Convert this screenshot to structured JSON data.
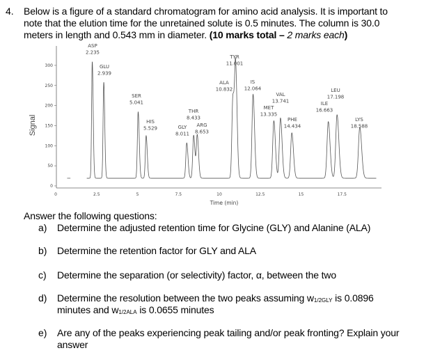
{
  "question": {
    "number": "4.",
    "lines": [
      "Below is a figure of a standard chromatogram for amino acid analysis. It is important to",
      "note that the elution time for the unretained solute is 0.5 minutes. The column is 30.0",
      "meters in length and 0.543 mm in diameter."
    ],
    "marks_bold": "(10 marks total – ",
    "marks_italic": "2 marks each",
    "marks_close": ")"
  },
  "chart_data": {
    "type": "line",
    "title": "",
    "xlabel": "Time (min)",
    "ylabel": "Signal",
    "xlim": [
      0,
      20
    ],
    "ylim": [
      0,
      320
    ],
    "xticks": [
      "0",
      "2.5",
      "5",
      "7.5",
      "10",
      "12.5",
      "15",
      "17.5"
    ],
    "xtick_values": [
      0,
      2.5,
      5,
      7.5,
      10,
      12.5,
      15,
      17.5
    ],
    "yticks": [
      "0",
      "50",
      "100",
      "150",
      "200",
      "250",
      "300"
    ],
    "ytick_values": [
      0,
      50,
      100,
      150,
      200,
      250,
      300
    ],
    "baseline": 19,
    "grid": false,
    "peaks": [
      {
        "name": "ASP",
        "rt": "2.235",
        "time": 2.235,
        "height": 309
      },
      {
        "name": "GLU",
        "rt": "2.939",
        "time": 2.939,
        "height": 258
      },
      {
        "name": "SER",
        "rt": "5.041",
        "time": 5.041,
        "height": 184
      },
      {
        "name": "HIS",
        "rt": "5.529",
        "time": 5.529,
        "height": 125
      },
      {
        "name": "GLY",
        "rt": "8.011",
        "time": 8.011,
        "height": 107
      },
      {
        "name": "THR",
        "rt": "8.433",
        "time": 8.433,
        "height": 126
      },
      {
        "name": "ARG",
        "rt": "8.653",
        "time": 8.653,
        "height": 126
      },
      {
        "name": "ALA",
        "rt": "10.832",
        "time": 10.832,
        "height": 221
      },
      {
        "name": "TYR",
        "rt": "11.001",
        "time": 11.001,
        "height": 285
      },
      {
        "name": "IS",
        "rt": "12.064",
        "time": 12.064,
        "height": 228
      },
      {
        "name": "MET",
        "rt": "13.335",
        "time": 13.335,
        "height": 162
      },
      {
        "name": "VAL",
        "rt": "13.741",
        "time": 13.741,
        "height": 169
      },
      {
        "name": "PHE",
        "rt": "14.434",
        "time": 14.434,
        "height": 132
      },
      {
        "name": "ILE",
        "rt": "16.663",
        "time": 16.663,
        "height": 160
      },
      {
        "name": "LEU",
        "rt": "17.198",
        "time": 17.198,
        "height": 177
      },
      {
        "name": "LYS",
        "rt": "18.588",
        "time": 18.588,
        "height": 146
      }
    ]
  },
  "answer_intro": "Answer the following questions:",
  "items": {
    "a": {
      "label": "a)",
      "text": "Determine the adjusted retention time for Glycine (GLY) and Alanine (ALA)"
    },
    "b": {
      "label": "b)",
      "text": "Determine the retention factor for GLY and ALA"
    },
    "c": {
      "label": "c)",
      "text": "Determine the separation (or selectivity) factor, α, between the two"
    },
    "d": {
      "label": "d)",
      "pre": "Determine the resolution between the two peaks assuming w",
      "sub1": "1/2GLY",
      "mid": " is 0.0896",
      "line2_pre": "minutes and w",
      "sub2": "1/2ALA",
      "line2_post": " is 0.0655 minutes"
    },
    "e": {
      "label": "e)",
      "text": "Are any of the peaks experiencing peak tailing and/or peak fronting? Explain your",
      "text2": "answer"
    }
  }
}
